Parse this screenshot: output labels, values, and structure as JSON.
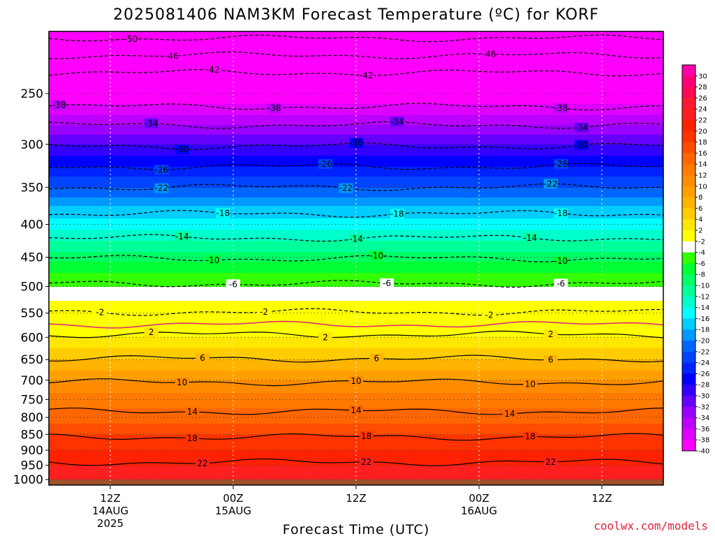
{
  "chart_data": {
    "type": "heatmap",
    "title": "2025081406 NAM3KM Forecast Temperature (ºC) for KORF",
    "xlabel": "Forecast Time (UTC)",
    "ylabel": "",
    "y_scale": "log",
    "y_inverted": true,
    "y_ticks": [
      250,
      300,
      350,
      400,
      450,
      500,
      550,
      600,
      650,
      700,
      750,
      800,
      850,
      900,
      950,
      1000
    ],
    "y_range": [
      200,
      1020
    ],
    "x_range": [
      0,
      60
    ],
    "x_ticks": [
      {
        "hour": 6,
        "lines": [
          "12Z",
          "14AUG",
          "2025"
        ]
      },
      {
        "hour": 18,
        "lines": [
          "00Z",
          "15AUG"
        ]
      },
      {
        "hour": 30,
        "lines": [
          "12Z"
        ]
      },
      {
        "hour": 42,
        "lines": [
          "00Z",
          "16AUG"
        ]
      },
      {
        "hour": 54,
        "lines": [
          "12Z"
        ]
      }
    ],
    "colorbar": {
      "labels": [
        30,
        28,
        26,
        24,
        22,
        20,
        18,
        16,
        14,
        12,
        10,
        8,
        6,
        4,
        2,
        -2,
        -4,
        -6,
        -8,
        -10,
        -12,
        -14,
        -16,
        -18,
        -20,
        -22,
        -24,
        -26,
        -28,
        -30,
        -32,
        -34,
        -36,
        -38,
        -40
      ],
      "colors": [
        "#ff00aa",
        "#ff0077",
        "#ff0a55",
        "#ff1a33",
        "#ff1f1f",
        "#ff2200",
        "#ff3300",
        "#ff4d00",
        "#ff6600",
        "#ff7a00",
        "#ff8c00",
        "#ffa000",
        "#ffb400",
        "#ffcc00",
        "#ffe600",
        "#ffff00",
        "#ffffff",
        "#33ff00",
        "#00ff33",
        "#00ff66",
        "#00ff99",
        "#00ffcc",
        "#00ffff",
        "#00ccff",
        "#0099ff",
        "#0066ff",
        "#0044ff",
        "#0022ff",
        "#0000ff",
        "#3300ff",
        "#6600ff",
        "#9900ff",
        "#bb00ff",
        "#dd00ff",
        "#ff00ff"
      ]
    },
    "profile": [
      {
        "p": 200,
        "t": -54
      },
      {
        "p": 225,
        "t": -48
      },
      {
        "p": 250,
        "t": -42
      },
      {
        "p": 275,
        "t": -37
      },
      {
        "p": 300,
        "t": -32
      },
      {
        "p": 325,
        "t": -28
      },
      {
        "p": 350,
        "t": -24
      },
      {
        "p": 375,
        "t": -20
      },
      {
        "p": 400,
        "t": -17
      },
      {
        "p": 425,
        "t": -14
      },
      {
        "p": 450,
        "t": -11
      },
      {
        "p": 475,
        "t": -8
      },
      {
        "p": 500,
        "t": -6
      },
      {
        "p": 525,
        "t": -4
      },
      {
        "p": 550,
        "t": -2
      },
      {
        "p": 575,
        "t": 0
      },
      {
        "p": 600,
        "t": 2
      },
      {
        "p": 625,
        "t": 4
      },
      {
        "p": 650,
        "t": 6
      },
      {
        "p": 700,
        "t": 10
      },
      {
        "p": 750,
        "t": 13
      },
      {
        "p": 800,
        "t": 15
      },
      {
        "p": 850,
        "t": 18
      },
      {
        "p": 900,
        "t": 20
      },
      {
        "p": 950,
        "t": 22
      },
      {
        "p": 1000,
        "t": 24
      }
    ],
    "contours": [
      {
        "t": -50,
        "p": 205,
        "dashed": true,
        "labels": [
          8
        ]
      },
      {
        "t": -46,
        "p": 218,
        "dashed": true,
        "labels": [
          12,
          43
        ]
      },
      {
        "t": -42,
        "p": 232,
        "dashed": true,
        "labels": [
          16,
          31
        ]
      },
      {
        "t": -38,
        "p": 262,
        "dashed": true,
        "labels": [
          1,
          22,
          50
        ]
      },
      {
        "t": -34,
        "p": 280,
        "dashed": true,
        "labels": [
          10,
          34,
          52
        ]
      },
      {
        "t": -30,
        "p": 302,
        "dashed": true,
        "labels": [
          13,
          30,
          52
        ]
      },
      {
        "t": -26,
        "p": 325,
        "dashed": true,
        "labels": [
          11,
          27,
          50
        ]
      },
      {
        "t": -22,
        "p": 350,
        "dashed": true,
        "labels": [
          11,
          29,
          49
        ]
      },
      {
        "t": -18,
        "p": 385,
        "dashed": true,
        "labels": [
          17,
          34,
          50
        ]
      },
      {
        "t": -14,
        "p": 420,
        "dashed": true,
        "labels": [
          13,
          30,
          47
        ]
      },
      {
        "t": -10,
        "p": 452,
        "dashed": true,
        "labels": [
          16,
          32,
          50
        ]
      },
      {
        "t": -6,
        "p": 495,
        "dashed": true,
        "labels": [
          18,
          33,
          50
        ]
      },
      {
        "t": -2,
        "p": 548,
        "dashed": true,
        "labels": [
          5,
          21,
          43
        ]
      },
      {
        "t": 0,
        "p": 573,
        "dashed": false,
        "color": "#e0207a",
        "labels": []
      },
      {
        "t": 2,
        "p": 594,
        "dashed": false,
        "labels": [
          10,
          27,
          49
        ]
      },
      {
        "t": 6,
        "p": 648,
        "dashed": false,
        "labels": [
          15,
          32,
          49
        ]
      },
      {
        "t": 10,
        "p": 705,
        "dashed": false,
        "labels": [
          13,
          30,
          47
        ]
      },
      {
        "t": 14,
        "p": 783,
        "dashed": false,
        "labels": [
          14,
          30,
          45
        ]
      },
      {
        "t": 18,
        "p": 858,
        "dashed": false,
        "labels": [
          14,
          31,
          47
        ]
      },
      {
        "t": 22,
        "p": 940,
        "dashed": false,
        "labels": [
          15,
          31,
          49
        ]
      }
    ],
    "ground_color": "#a0522d",
    "grid": true,
    "legend_position": "right"
  },
  "footer": {
    "credit": "coolwx.com/models"
  }
}
